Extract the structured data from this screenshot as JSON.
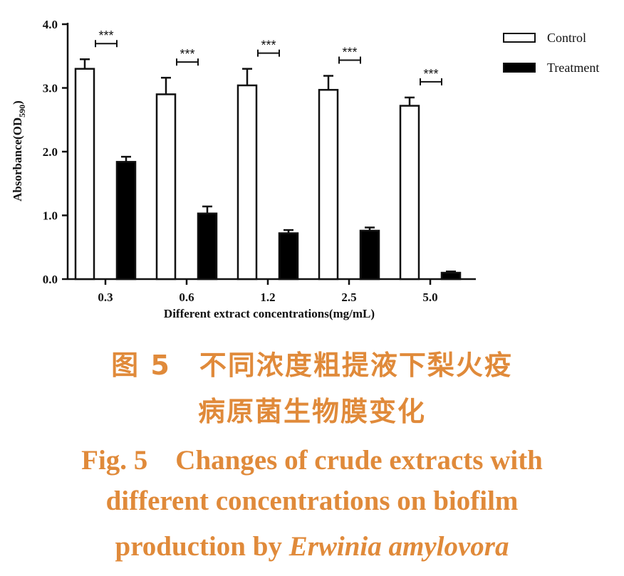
{
  "chart_data": {
    "type": "bar",
    "categories": [
      "0.3",
      "0.6",
      "1.2",
      "2.5",
      "5.0"
    ],
    "series": [
      {
        "name": "Control",
        "values": [
          3.3,
          2.9,
          3.04,
          2.97,
          2.72
        ],
        "errors": [
          0.15,
          0.26,
          0.26,
          0.22,
          0.13
        ],
        "fill": "#ffffff"
      },
      {
        "name": "Treatment",
        "values": [
          1.84,
          1.03,
          0.72,
          0.76,
          0.1
        ],
        "errors": [
          0.08,
          0.11,
          0.05,
          0.05,
          0.02
        ],
        "fill": "#000000"
      }
    ],
    "significance": [
      "***",
      "***",
      "***",
      "***",
      "***"
    ],
    "xlabel": "Different  extract  concentrations(mg/mL)",
    "ylabel": "Absorbance(OD",
    "ylabel_sub": "590",
    "ylabel_close": ")",
    "yticks": [
      "0.0",
      "1.0",
      "2.0",
      "3.0",
      "4.0"
    ],
    "ylim": [
      0,
      4
    ],
    "legend_position": "top-right",
    "grid": false
  },
  "caption": {
    "cn_line1": "图 5　不同浓度粗提液下梨火疫",
    "cn_line2": "病原菌生物膜变化",
    "en_line1": "Fig. 5　Changes of crude extracts with",
    "en_line2": "different concentrations on biofilm",
    "en_line3_prefix": "production by ",
    "en_line3_italic": "Erwinia amylovora"
  },
  "colors": {
    "caption": "#e08a3a",
    "axis": "#111111"
  }
}
